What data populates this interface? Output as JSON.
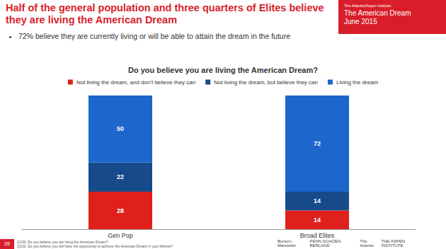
{
  "page": {
    "headline": "Half of the general population and three quarters of Elites believe they are living the American Dream",
    "bullet": "72% believe they are currently living or will be able to attain the dream in the future",
    "banner": [
      "The Atlantic/Aspen Institute",
      "The American Dream",
      "June 2015"
    ],
    "footnotes": [
      "Q130. Do you believe you are living the American Dream?",
      "Q132. Do you believe you will have the opportunity to achieve the American Dream in your lifetime?"
    ],
    "page_number": 26,
    "logos": [
      "Burson-Marsteller",
      "PENN SCHOEN BERLAND",
      "The Atlantic",
      "THE ASPEN INSTITUTE"
    ]
  },
  "chart_data": {
    "type": "bar",
    "title": "Do you believe you are living the American Dream?",
    "categories": [
      "Gen Pop",
      "Broad Elites"
    ],
    "series": [
      {
        "name": "Not living the dream, and don't believe they can",
        "color": "#e0201b",
        "values": [
          28,
          14
        ]
      },
      {
        "name": "Not living the dream, but believe they can",
        "color": "#174a8a",
        "values": [
          22,
          14
        ]
      },
      {
        "name": "Living the dream",
        "color": "#1c66cc",
        "values": [
          50,
          72
        ]
      }
    ],
    "stacked": true,
    "data_labels": true,
    "tick_labels": "x",
    "legend": "top",
    "ylim": [
      0,
      100
    ]
  }
}
